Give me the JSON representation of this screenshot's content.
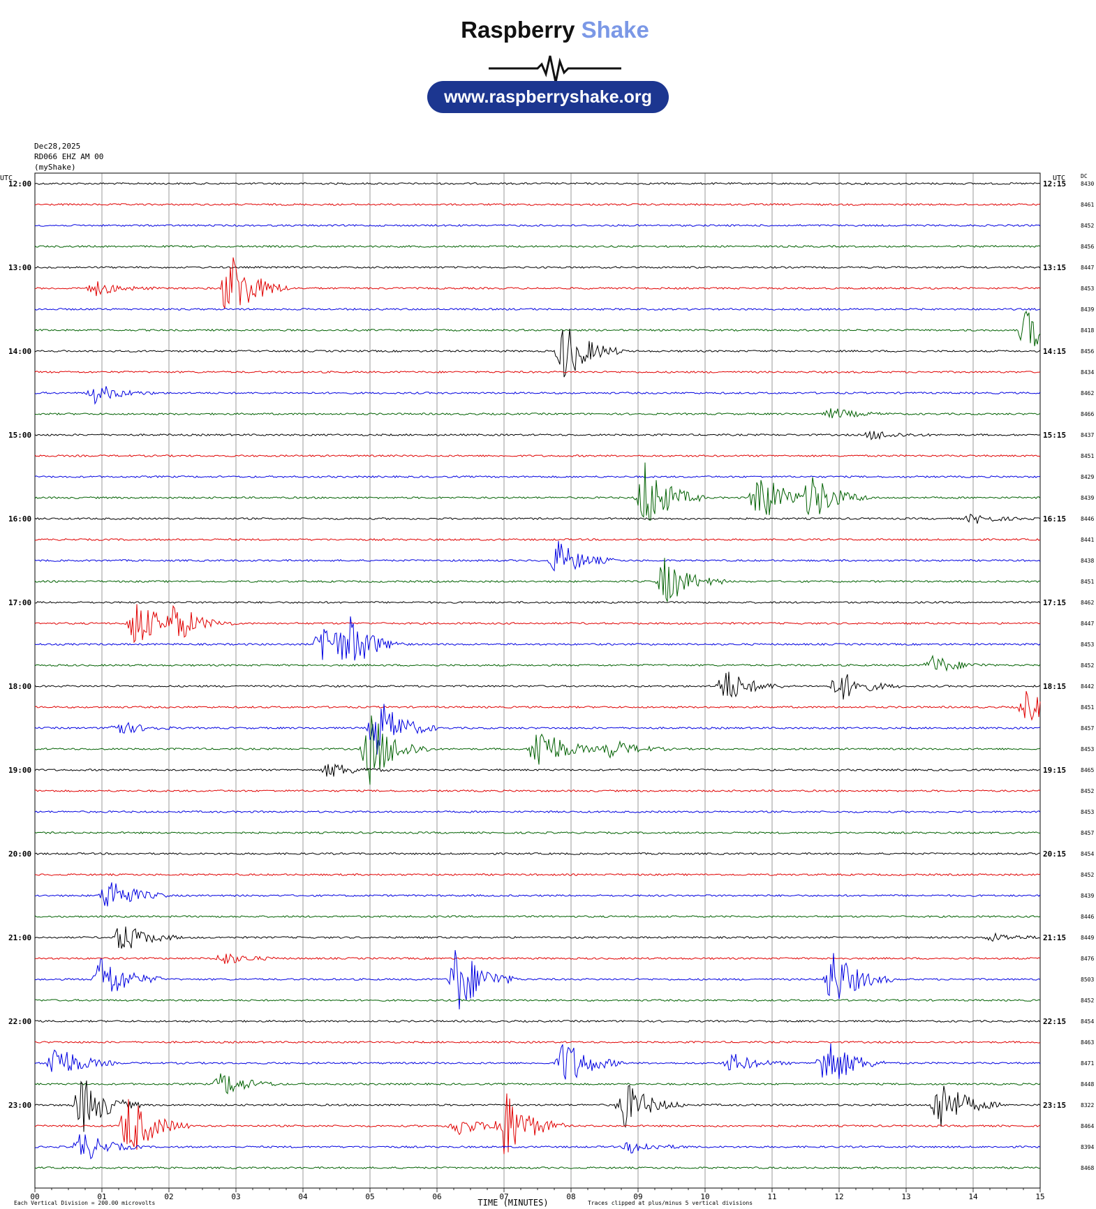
{
  "header": {
    "brand_main": "Raspberry",
    "brand_accent": "Shake",
    "url": "www.raspberryshake.org"
  },
  "meta": {
    "date": "Dec28,2025",
    "station": "RD066 EHZ AM 00",
    "source": "(myShake)"
  },
  "labels": {
    "utc_left": "UTC",
    "utc_right": "UTC",
    "dc": "DC",
    "xlabel": "TIME (MINUTES)",
    "footer_left": "Each Vertical Division =  200.00 microvolts",
    "footer_right": "Traces clipped at plus/minus 5 vertical divisions"
  },
  "colors": {
    "cycle": [
      "#000000",
      "#e00000",
      "#0000e0",
      "#006000"
    ],
    "grid": "#555555"
  },
  "chart_data": {
    "type": "line",
    "title": "",
    "xlabel": "TIME (MINUTES)",
    "ylabel": "",
    "xlim": [
      0,
      15
    ],
    "x_ticks": [
      "00",
      "01",
      "02",
      "03",
      "04",
      "05",
      "06",
      "07",
      "08",
      "09",
      "10",
      "11",
      "12",
      "13",
      "14",
      "15"
    ],
    "grid": true,
    "left_time_labels": [
      "12:00",
      "13:00",
      "14:00",
      "15:00",
      "16:00",
      "17:00",
      "18:00",
      "19:00",
      "20:00",
      "21:00",
      "22:00",
      "23:00"
    ],
    "right_time_labels": [
      "12:15",
      "13:15",
      "14:15",
      "15:15",
      "16:15",
      "17:15",
      "18:15",
      "19:15",
      "20:15",
      "21:15",
      "22:15",
      "23:15"
    ],
    "dc_values": [
      8430,
      8461,
      8452,
      8456,
      8447,
      8453,
      8439,
      8418,
      8456,
      8434,
      8462,
      8466,
      8437,
      8451,
      8429,
      8439,
      8446,
      8441,
      8438,
      8451,
      8462,
      8447,
      8453,
      8452,
      8442,
      8451,
      8457,
      8453,
      8465,
      8452,
      8453,
      8457,
      8454,
      8452,
      8439,
      8446,
      8449,
      8476,
      8503,
      8452,
      8454,
      8463,
      8471,
      8448,
      8322,
      8464,
      8394,
      8468
    ],
    "events": [
      {
        "trace": 5,
        "minute": 2.9,
        "strength": 4.8
      },
      {
        "trace": 5,
        "minute": 0.9,
        "strength": 0.9
      },
      {
        "trace": 8,
        "minute": 7.9,
        "strength": 3.8
      },
      {
        "trace": 7,
        "minute": 14.8,
        "strength": 2.8
      },
      {
        "trace": 10,
        "minute": 0.9,
        "strength": 1.2
      },
      {
        "trace": 11,
        "minute": 11.9,
        "strength": 0.7
      },
      {
        "trace": 12,
        "minute": 12.5,
        "strength": 0.6
      },
      {
        "trace": 15,
        "minute": 9.1,
        "strength": 4.6
      },
      {
        "trace": 15,
        "minute": 10.8,
        "strength": 3.6
      },
      {
        "trace": 15,
        "minute": 11.6,
        "strength": 3.0
      },
      {
        "trace": 16,
        "minute": 14.0,
        "strength": 0.6
      },
      {
        "trace": 18,
        "minute": 7.8,
        "strength": 2.4
      },
      {
        "trace": 19,
        "minute": 9.4,
        "strength": 3.0
      },
      {
        "trace": 21,
        "minute": 1.5,
        "strength": 3.2
      },
      {
        "trace": 21,
        "minute": 2.1,
        "strength": 2.2
      },
      {
        "trace": 22,
        "minute": 4.3,
        "strength": 3.2
      },
      {
        "trace": 22,
        "minute": 4.7,
        "strength": 2.6
      },
      {
        "trace": 23,
        "minute": 13.4,
        "strength": 1.2
      },
      {
        "trace": 24,
        "minute": 10.3,
        "strength": 2.2
      },
      {
        "trace": 24,
        "minute": 12.0,
        "strength": 2.0
      },
      {
        "trace": 25,
        "minute": 14.8,
        "strength": 2.0
      },
      {
        "trace": 26,
        "minute": 5.1,
        "strength": 4.0
      },
      {
        "trace": 26,
        "minute": 1.2,
        "strength": 1.0
      },
      {
        "trace": 27,
        "minute": 5.0,
        "strength": 4.6
      },
      {
        "trace": 27,
        "minute": 7.5,
        "strength": 3.4
      },
      {
        "trace": 27,
        "minute": 8.6,
        "strength": 1.2
      },
      {
        "trace": 28,
        "minute": 4.4,
        "strength": 1.0
      },
      {
        "trace": 34,
        "minute": 1.1,
        "strength": 2.4
      },
      {
        "trace": 36,
        "minute": 1.3,
        "strength": 2.0
      },
      {
        "trace": 36,
        "minute": 14.3,
        "strength": 0.5
      },
      {
        "trace": 37,
        "minute": 2.8,
        "strength": 0.8
      },
      {
        "trace": 38,
        "minute": 6.3,
        "strength": 4.6
      },
      {
        "trace": 38,
        "minute": 1.0,
        "strength": 3.2
      },
      {
        "trace": 38,
        "minute": 11.9,
        "strength": 3.8
      },
      {
        "trace": 42,
        "minute": 0.3,
        "strength": 2.6
      },
      {
        "trace": 42,
        "minute": 7.9,
        "strength": 3.2
      },
      {
        "trace": 42,
        "minute": 11.8,
        "strength": 3.6
      },
      {
        "trace": 42,
        "minute": 10.4,
        "strength": 1.2
      },
      {
        "trace": 43,
        "minute": 2.8,
        "strength": 1.6
      },
      {
        "trace": 44,
        "minute": 0.7,
        "strength": 3.6
      },
      {
        "trace": 44,
        "minute": 8.8,
        "strength": 3.0
      },
      {
        "trace": 44,
        "minute": 13.5,
        "strength": 3.6
      },
      {
        "trace": 45,
        "minute": 1.4,
        "strength": 4.2
      },
      {
        "trace": 45,
        "minute": 7.0,
        "strength": 4.6
      },
      {
        "trace": 45,
        "minute": 6.3,
        "strength": 1.2
      },
      {
        "trace": 46,
        "minute": 0.7,
        "strength": 2.0
      },
      {
        "trace": 46,
        "minute": 8.9,
        "strength": 0.8
      }
    ]
  }
}
